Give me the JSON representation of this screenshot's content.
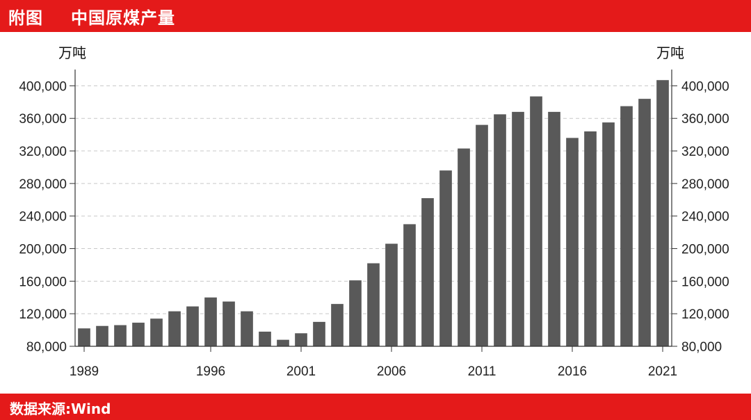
{
  "header": {
    "fig_label": "附图",
    "title": "中国原煤产量"
  },
  "footer": {
    "source": "数据来源:Wind"
  },
  "units": {
    "left": "万吨",
    "right": "万吨"
  },
  "colors": {
    "banner": "#e41a1a",
    "bar": "#595959",
    "grid": "#c8c8c8"
  },
  "chart_data": {
    "type": "bar",
    "title": "中国原煤产量",
    "xlabel": "",
    "ylabel": "万吨",
    "ylim": [
      80000,
      420000
    ],
    "yticks": [
      80000,
      120000,
      160000,
      200000,
      240000,
      280000,
      320000,
      360000,
      400000
    ],
    "ytick_labels": [
      "80,000",
      "120,000",
      "160,000",
      "200,000",
      "240,000",
      "280,000",
      "320,000",
      "360,000",
      "400,000"
    ],
    "xtick_labels": [
      "1989",
      "1996",
      "2001",
      "2006",
      "2011",
      "2016",
      "2021"
    ],
    "grid": true,
    "secondary_axis": "right (same scale)",
    "categories": [
      "1989",
      "1990",
      "1991",
      "1992",
      "1993",
      "1994",
      "1995",
      "1996",
      "1997",
      "1998",
      "1999",
      "2000",
      "2001",
      "2002",
      "2003",
      "2004",
      "2005",
      "2006",
      "2007",
      "2008",
      "2009",
      "2010",
      "2011",
      "2012",
      "2013",
      "2014",
      "2015",
      "2016",
      "2017",
      "2018",
      "2019",
      "2020",
      "2021"
    ],
    "values": [
      102000,
      105000,
      106000,
      109000,
      114000,
      123000,
      129000,
      140000,
      135000,
      123000,
      98000,
      88000,
      96000,
      110000,
      132000,
      161000,
      182000,
      206000,
      230000,
      262000,
      296000,
      323000,
      352000,
      365000,
      368000,
      387000,
      368000,
      336000,
      344000,
      355000,
      375000,
      384000,
      407000
    ]
  }
}
